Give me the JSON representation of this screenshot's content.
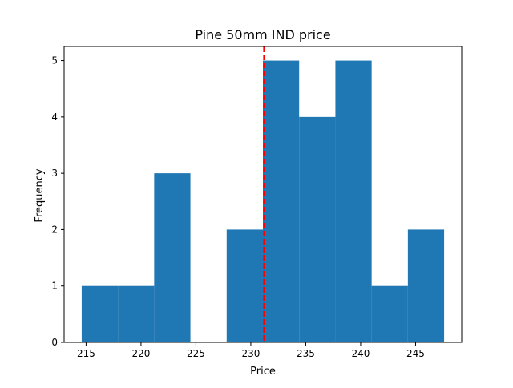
{
  "chart_data": {
    "type": "bar",
    "title": "Pine 50mm IND price",
    "xlabel": "Price",
    "ylabel": "Frequency",
    "xlim": [
      213.0,
      249.2
    ],
    "ylim": [
      0,
      5.25
    ],
    "x_ticks": [
      215,
      220,
      225,
      230,
      235,
      240,
      245
    ],
    "y_ticks": [
      0,
      1,
      2,
      3,
      4,
      5
    ],
    "bins": [
      {
        "x0": 214.6,
        "x1": 217.9,
        "count": 1
      },
      {
        "x0": 217.9,
        "x1": 221.2,
        "count": 1
      },
      {
        "x0": 221.2,
        "x1": 224.5,
        "count": 3
      },
      {
        "x0": 224.5,
        "x1": 227.8,
        "count": 0
      },
      {
        "x0": 227.8,
        "x1": 231.1,
        "count": 2
      },
      {
        "x0": 231.1,
        "x1": 234.4,
        "count": 5
      },
      {
        "x0": 234.4,
        "x1": 237.7,
        "count": 4
      },
      {
        "x0": 237.7,
        "x1": 241.0,
        "count": 5
      },
      {
        "x0": 241.0,
        "x1": 244.3,
        "count": 1
      },
      {
        "x0": 244.3,
        "x1": 247.6,
        "count": 2
      }
    ],
    "reference_line": {
      "x": 231.2,
      "style": "dashed",
      "color": "#ff0000"
    },
    "bar_color": "#1f77b4",
    "grid": false,
    "legend": "none"
  }
}
